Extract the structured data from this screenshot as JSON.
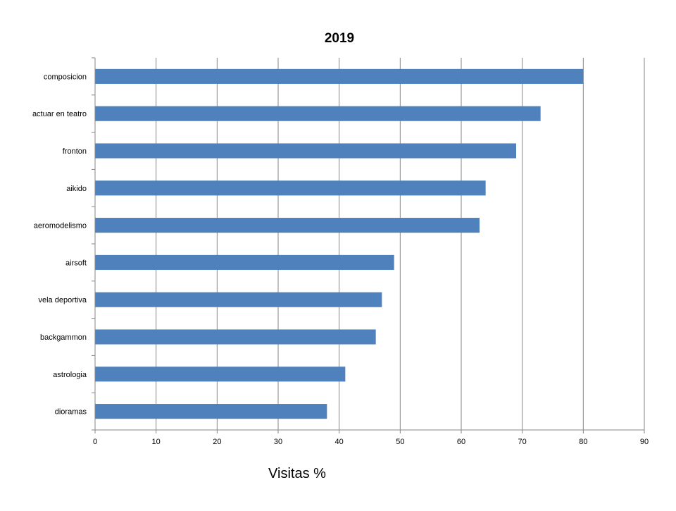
{
  "chart_data": {
    "type": "bar",
    "orientation": "horizontal",
    "title": "2019",
    "xlabel": "Visitas %",
    "ylabel": "",
    "categories": [
      "composicion",
      "actuar en teatro",
      "fronton",
      "aikido",
      "aeromodelismo",
      "airsoft",
      "vela deportiva",
      "backgammon",
      "astrologia",
      "dioramas"
    ],
    "values": [
      80,
      73,
      69,
      64,
      63,
      49,
      47,
      46,
      41,
      38
    ],
    "xlim": [
      0,
      90
    ],
    "xticks": [
      "0",
      "10",
      "20",
      "30",
      "40",
      "50",
      "60",
      "70",
      "80",
      "90"
    ],
    "grid": true,
    "legend": "none",
    "bar_color": "#4f81bd"
  }
}
